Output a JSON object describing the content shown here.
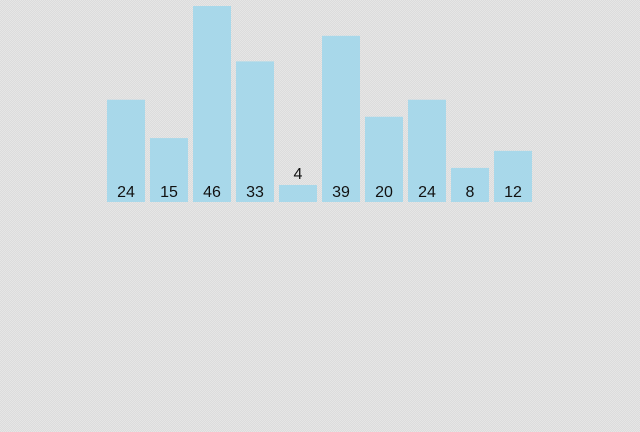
{
  "chart_data": {
    "type": "bar",
    "values": [
      24,
      15,
      46,
      33,
      4,
      39,
      20,
      24,
      8,
      12
    ],
    "ylim": [
      0,
      46
    ],
    "bar_color": "#a8d8ea",
    "label_color": "#111111",
    "grid": false
  }
}
